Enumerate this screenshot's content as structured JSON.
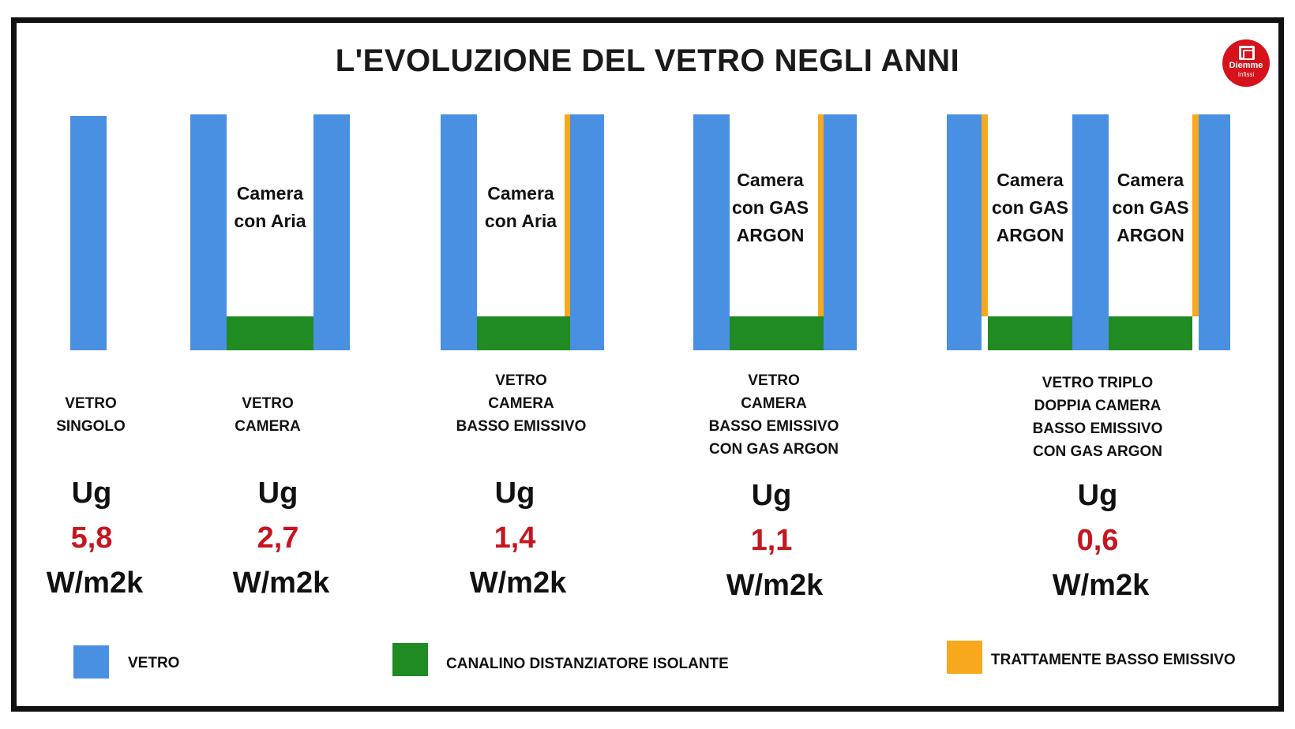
{
  "title": "L'EVOLUZIONE DEL VETRO NEGLI ANNI",
  "logo": {
    "name": "Diemme",
    "sub": "Infissi"
  },
  "colors": {
    "glass": "#4a90e2",
    "spacer": "#1f8b22",
    "coating": "#f8a81c",
    "value": "#c51620"
  },
  "chambers": {
    "air": [
      "Camera",
      "con Aria"
    ],
    "argon": [
      "Camera",
      "con GAS",
      "ARGON"
    ]
  },
  "types": [
    {
      "desc": [
        "VETRO",
        "SINGOLO"
      ],
      "ug": "Ug",
      "value": "5,8",
      "unit": "W/m2k"
    },
    {
      "desc": [
        "VETRO",
        "CAMERA"
      ],
      "ug": "Ug",
      "value": "2,7",
      "unit": "W/m2k"
    },
    {
      "desc": [
        "VETRO",
        "CAMERA",
        "BASSO EMISSIVO"
      ],
      "ug": "Ug",
      "value": "1,4",
      "unit": "W/m2k"
    },
    {
      "desc": [
        "VETRO",
        "CAMERA",
        "BASSO EMISSIVO",
        "CON GAS ARGON"
      ],
      "ug": "Ug",
      "value": "1,1",
      "unit": "W/m2k"
    },
    {
      "desc": [
        "VETRO TRIPLO",
        "DOPPIA CAMERA",
        "BASSO EMISSIVO",
        "CON GAS ARGON"
      ],
      "ug": "Ug",
      "value": "0,6",
      "unit": "W/m2k"
    }
  ],
  "legend": {
    "glass": "VETRO",
    "spacer": "CANALINO DISTANZIATORE ISOLANTE",
    "coating": "TRATTAMENTE BASSO EMISSIVO"
  }
}
